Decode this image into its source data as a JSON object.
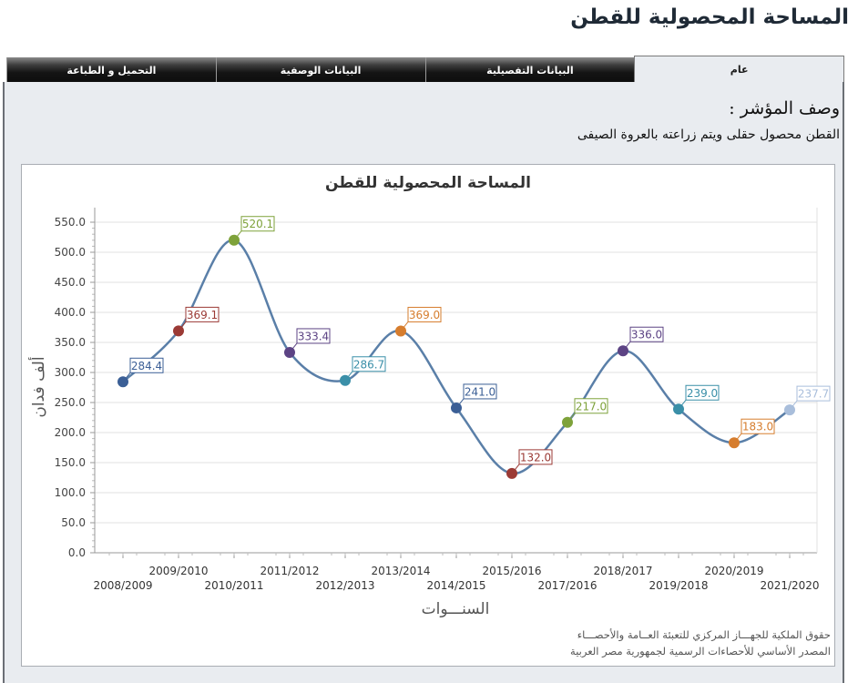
{
  "page": {
    "title": "المساحة المحصولية للقطن"
  },
  "tabs": [
    {
      "label": "عام",
      "active": true
    },
    {
      "label": "البيانات التفصيلية",
      "active": false
    },
    {
      "label": "البيانات الوصفية",
      "active": false
    },
    {
      "label": "التحميل و الطباعة",
      "active": false
    }
  ],
  "description": {
    "label": "وصف المؤشر :",
    "text": "القطن محصول حقلى ويتم زراعته بالعروة الصيفى"
  },
  "footer": {
    "line1": "حقوق الملكية للجهـــاز المركزي للتعبئة العــامة والأحصـــاء",
    "line2": "المصدر الأساسي للأحصاءات الرسمية لجمهورية مصر العربية"
  },
  "chart_data": {
    "type": "line",
    "title": "المساحة المحصولية للقطن",
    "xlabel": "السنـــوات",
    "ylabel": "ألف فدان",
    "ylim": [
      0,
      550
    ],
    "yticks": [
      "0.0",
      "50.0",
      "100.0",
      "150.0",
      "200.0",
      "250.0",
      "300.0",
      "350.0",
      "400.0",
      "450.0",
      "500.0",
      "550.0"
    ],
    "grid": true,
    "legend": "none",
    "smooth": true,
    "line_color": "#5a7fa8",
    "categories": [
      "2008/2009",
      "2009/2010",
      "2010/2011",
      "2011/2012",
      "2012/2013",
      "2013/2014",
      "2014/2015",
      "2015/2016",
      "2017/2016",
      "2018/2017",
      "2019/2018",
      "2020/2019",
      "2021/2020"
    ],
    "values": [
      284.4,
      369.1,
      520.1,
      333.4,
      286.7,
      369.0,
      241.0,
      132.0,
      217.0,
      336.0,
      239.0,
      183.0,
      237.7
    ],
    "labels": [
      "284.4",
      "369.1",
      "520.1",
      "333.4",
      "286.7",
      "369.0",
      "241.0",
      "132.0",
      "217.0",
      "336.0",
      "239.0",
      "183.0",
      "237.7"
    ],
    "point_colors": [
      "#3b5f96",
      "#9b3a35",
      "#7ea23a",
      "#5c4384",
      "#3a8fa8",
      "#d67d2e",
      "#3b5f96",
      "#9b3a35",
      "#7ea23a",
      "#5c4384",
      "#3a8fa8",
      "#d67d2e",
      "#a9bedb"
    ]
  }
}
